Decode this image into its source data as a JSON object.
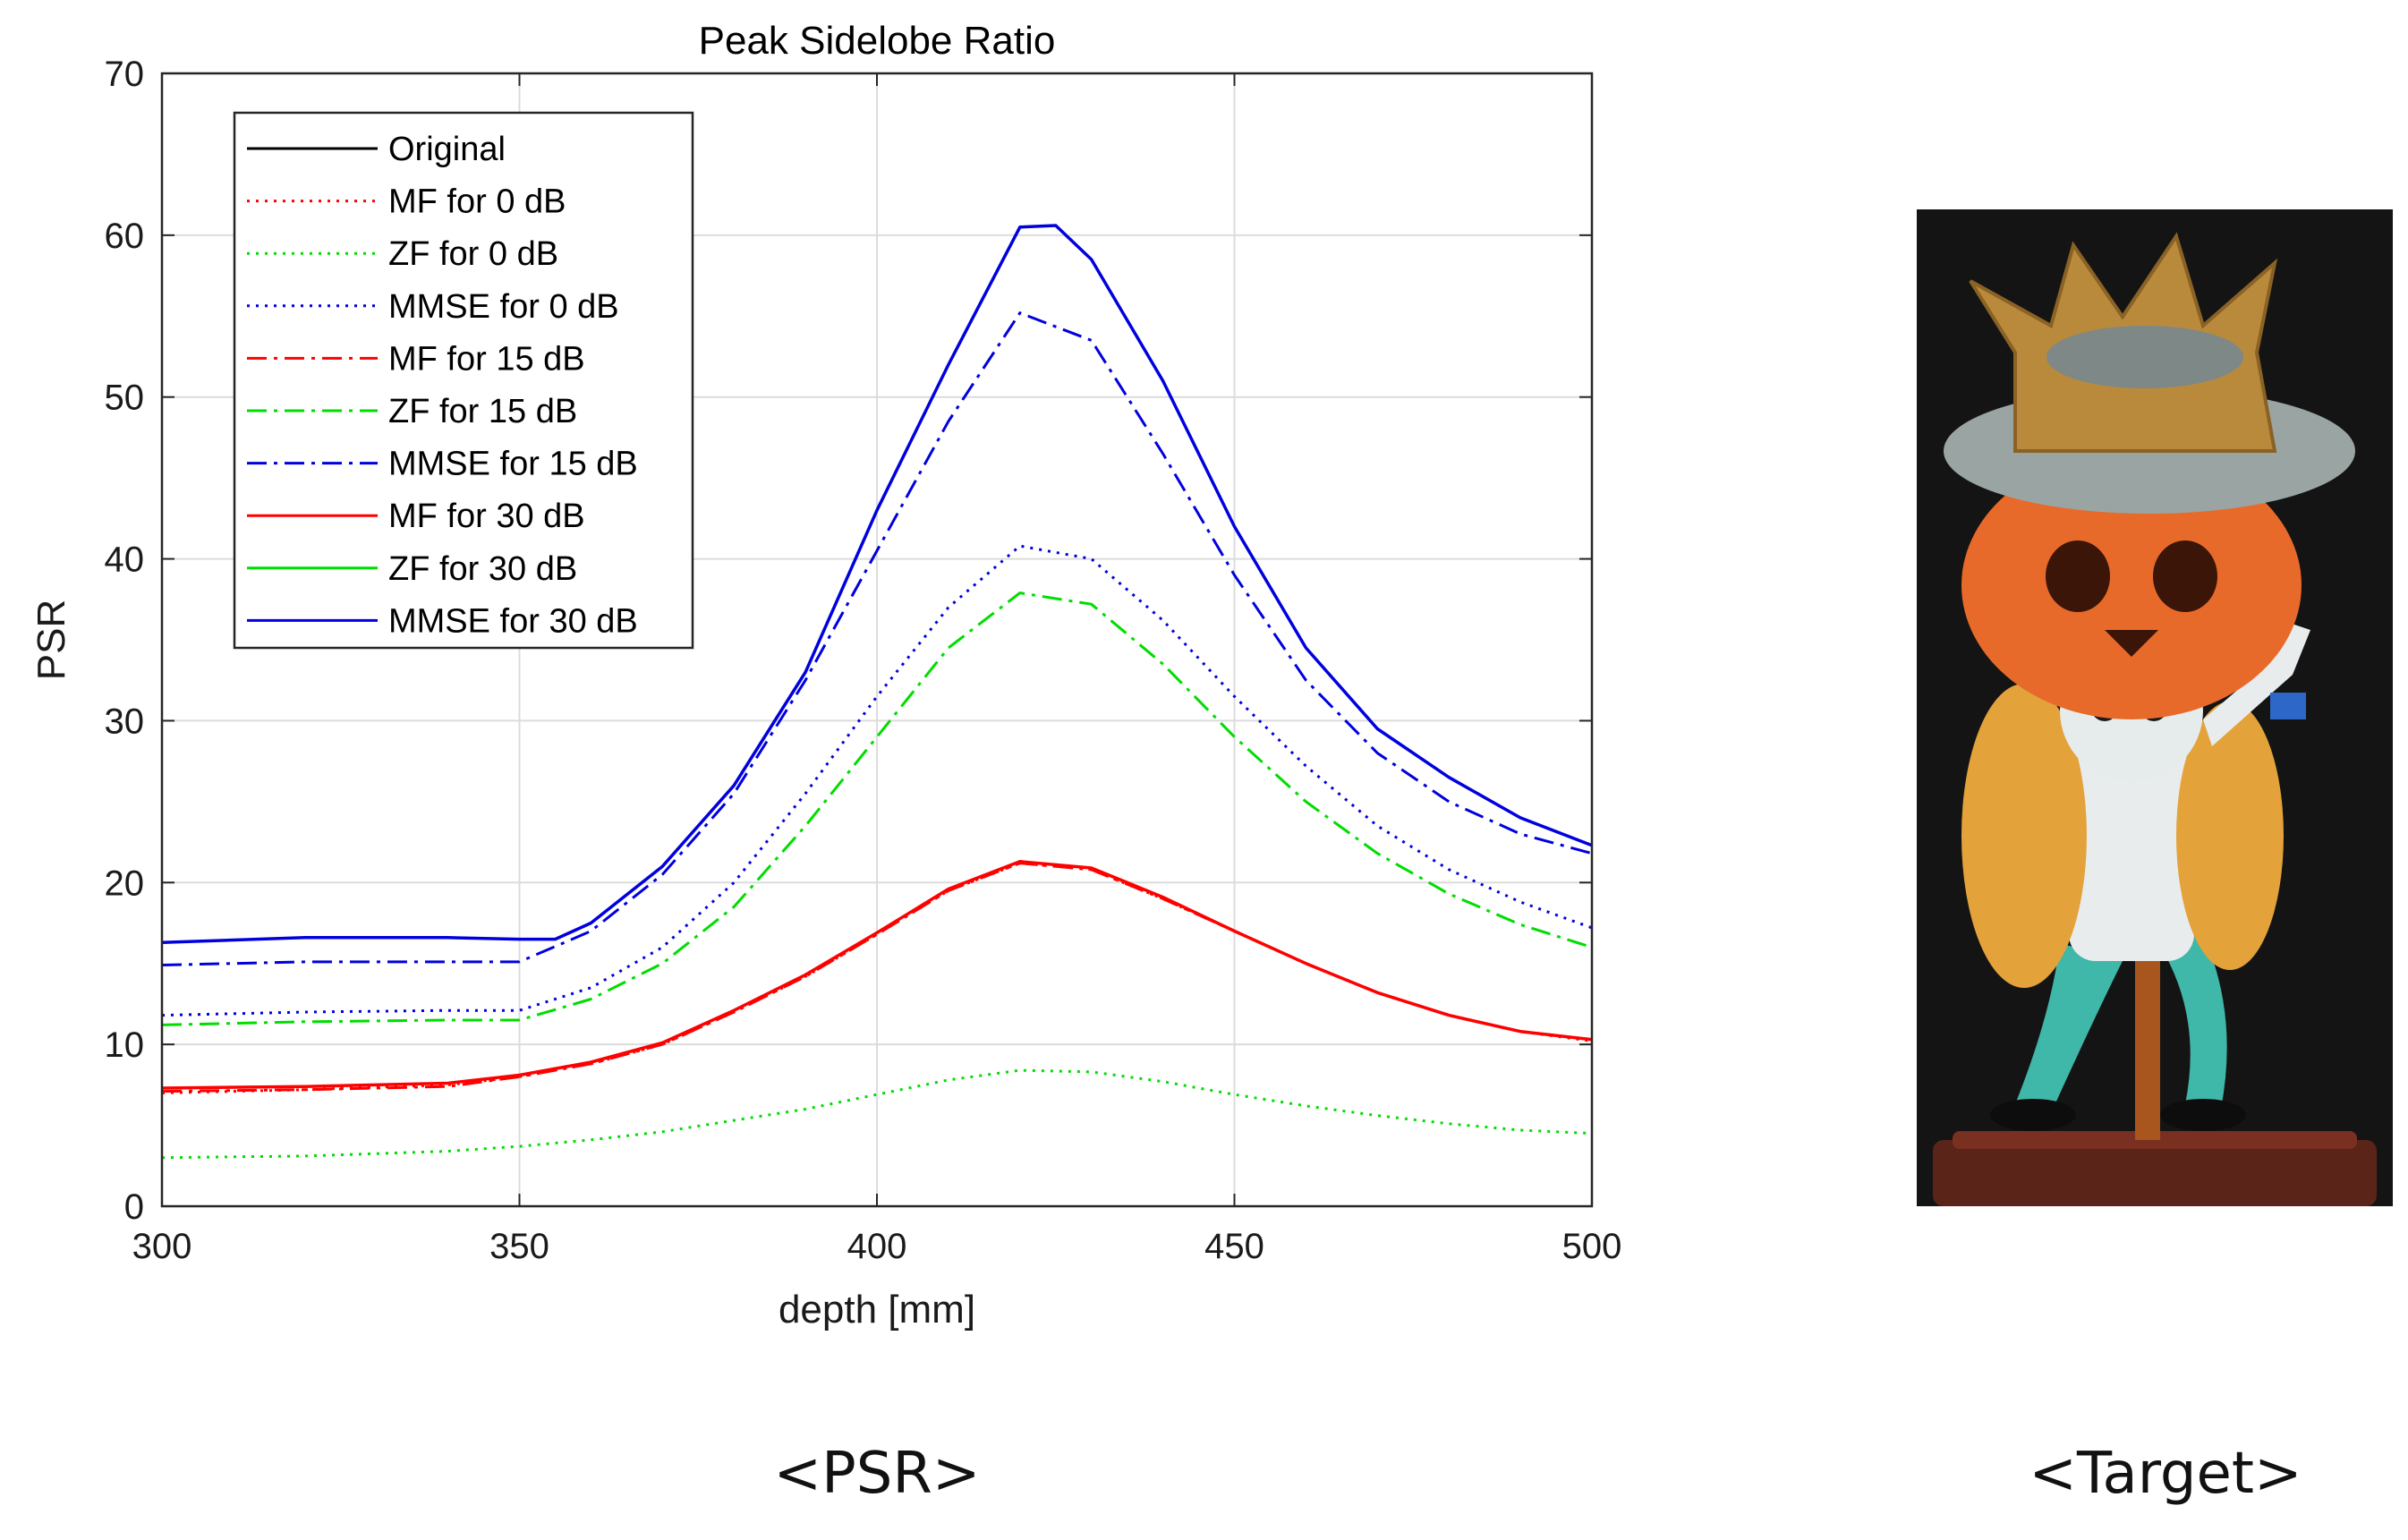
{
  "chart_data": {
    "type": "line",
    "title": "Peak Sidelobe Ratio",
    "xlabel": "depth [mm]",
    "ylabel": "PSR",
    "xlim": [
      300,
      500
    ],
    "ylim": [
      0,
      70
    ],
    "xticks": [
      300,
      350,
      400,
      450,
      500
    ],
    "yticks": [
      0,
      10,
      20,
      30,
      40,
      50,
      60,
      70
    ],
    "grid": true,
    "legend_position": "top-left",
    "series": [
      {
        "name": "Original",
        "color": "#000000",
        "style": "solid",
        "x": [
          300,
          500
        ],
        "y": [
          null,
          null
        ]
      },
      {
        "name": "MF for 0 dB",
        "color": "#ff0000",
        "style": "dotted",
        "x": [
          300,
          320,
          340,
          350,
          360,
          370,
          380,
          390,
          400,
          410,
          420,
          430,
          440,
          450,
          460,
          470,
          480,
          490,
          500
        ],
        "y": [
          7.0,
          7.2,
          7.5,
          8.0,
          8.8,
          10.0,
          12.0,
          14.2,
          16.8,
          19.5,
          21.2,
          20.8,
          19.0,
          17.0,
          15.0,
          13.2,
          11.8,
          10.8,
          10.2
        ]
      },
      {
        "name": "ZF for 0 dB",
        "color": "#00dd00",
        "style": "dotted",
        "x": [
          300,
          320,
          340,
          350,
          360,
          370,
          380,
          390,
          400,
          410,
          420,
          430,
          440,
          450,
          460,
          470,
          480,
          490,
          500
        ],
        "y": [
          3.0,
          3.1,
          3.4,
          3.7,
          4.1,
          4.6,
          5.3,
          6.0,
          6.9,
          7.8,
          8.4,
          8.3,
          7.7,
          6.9,
          6.2,
          5.6,
          5.1,
          4.7,
          4.5
        ]
      },
      {
        "name": "MMSE for 0 dB",
        "color": "#0000dd",
        "style": "dotted",
        "x": [
          300,
          320,
          340,
          350,
          360,
          370,
          380,
          390,
          400,
          410,
          420,
          430,
          440,
          450,
          460,
          470,
          480,
          490,
          500
        ],
        "y": [
          11.8,
          12.0,
          12.1,
          12.1,
          13.5,
          16.0,
          20.0,
          25.5,
          31.5,
          37.0,
          40.8,
          40.0,
          36.2,
          31.5,
          27.2,
          23.5,
          20.8,
          18.8,
          17.2
        ]
      },
      {
        "name": "MF for 15 dB",
        "color": "#ff0000",
        "style": "dashdot",
        "x": [
          300,
          320,
          340,
          350,
          360,
          370,
          380,
          390,
          400,
          410,
          420,
          430,
          440,
          450,
          460,
          470,
          480,
          490,
          500
        ],
        "y": [
          7.1,
          7.2,
          7.4,
          8.0,
          8.8,
          10.0,
          12.0,
          14.2,
          16.8,
          19.5,
          21.2,
          20.8,
          19.0,
          17.0,
          15.0,
          13.2,
          11.8,
          10.8,
          10.3
        ]
      },
      {
        "name": "ZF for 15 dB",
        "color": "#00dd00",
        "style": "dashdot",
        "x": [
          300,
          320,
          340,
          350,
          360,
          370,
          380,
          390,
          400,
          410,
          420,
          430,
          440,
          450,
          460,
          470,
          480,
          490,
          500
        ],
        "y": [
          11.2,
          11.4,
          11.5,
          11.5,
          12.8,
          15.0,
          18.5,
          23.5,
          29.0,
          34.5,
          37.9,
          37.2,
          33.5,
          29.0,
          25.0,
          21.8,
          19.3,
          17.4,
          16.0
        ]
      },
      {
        "name": "MMSE for 15 dB",
        "color": "#0000dd",
        "style": "dashdot",
        "x": [
          300,
          320,
          340,
          350,
          360,
          370,
          380,
          390,
          400,
          410,
          420,
          430,
          440,
          450,
          460,
          470,
          480,
          490,
          500
        ],
        "y": [
          14.9,
          15.1,
          15.1,
          15.1,
          17.0,
          20.5,
          25.5,
          32.5,
          40.5,
          48.5,
          55.2,
          53.5,
          46.5,
          39.0,
          32.5,
          28.0,
          25.0,
          23.0,
          21.8
        ]
      },
      {
        "name": "MF for 30 dB",
        "color": "#ff0000",
        "style": "solid",
        "x": [
          300,
          320,
          340,
          350,
          360,
          370,
          380,
          390,
          400,
          410,
          420,
          430,
          440,
          450,
          460,
          470,
          480,
          490,
          500
        ],
        "y": [
          7.3,
          7.4,
          7.6,
          8.1,
          8.9,
          10.1,
          12.1,
          14.3,
          16.9,
          19.6,
          21.3,
          20.9,
          19.1,
          17.0,
          15.0,
          13.2,
          11.8,
          10.8,
          10.3
        ]
      },
      {
        "name": "ZF for 30 dB",
        "color": "#00dd00",
        "style": "solid",
        "x": [
          300,
          500
        ],
        "y": [
          null,
          null
        ]
      },
      {
        "name": "MMSE for 30 dB",
        "color": "#0000dd",
        "style": "solid",
        "x": [
          300,
          320,
          340,
          350,
          355,
          360,
          370,
          380,
          390,
          400,
          410,
          420,
          425,
          430,
          440,
          450,
          460,
          470,
          480,
          490,
          500
        ],
        "y": [
          16.3,
          16.6,
          16.6,
          16.5,
          16.5,
          17.5,
          21.0,
          26.0,
          33.0,
          43.0,
          52.0,
          60.5,
          60.6,
          58.5,
          51.0,
          42.0,
          34.5,
          29.5,
          26.5,
          24.0,
          22.3
        ]
      }
    ]
  },
  "captions": {
    "psr": "<PSR>",
    "target": "<Target>"
  }
}
